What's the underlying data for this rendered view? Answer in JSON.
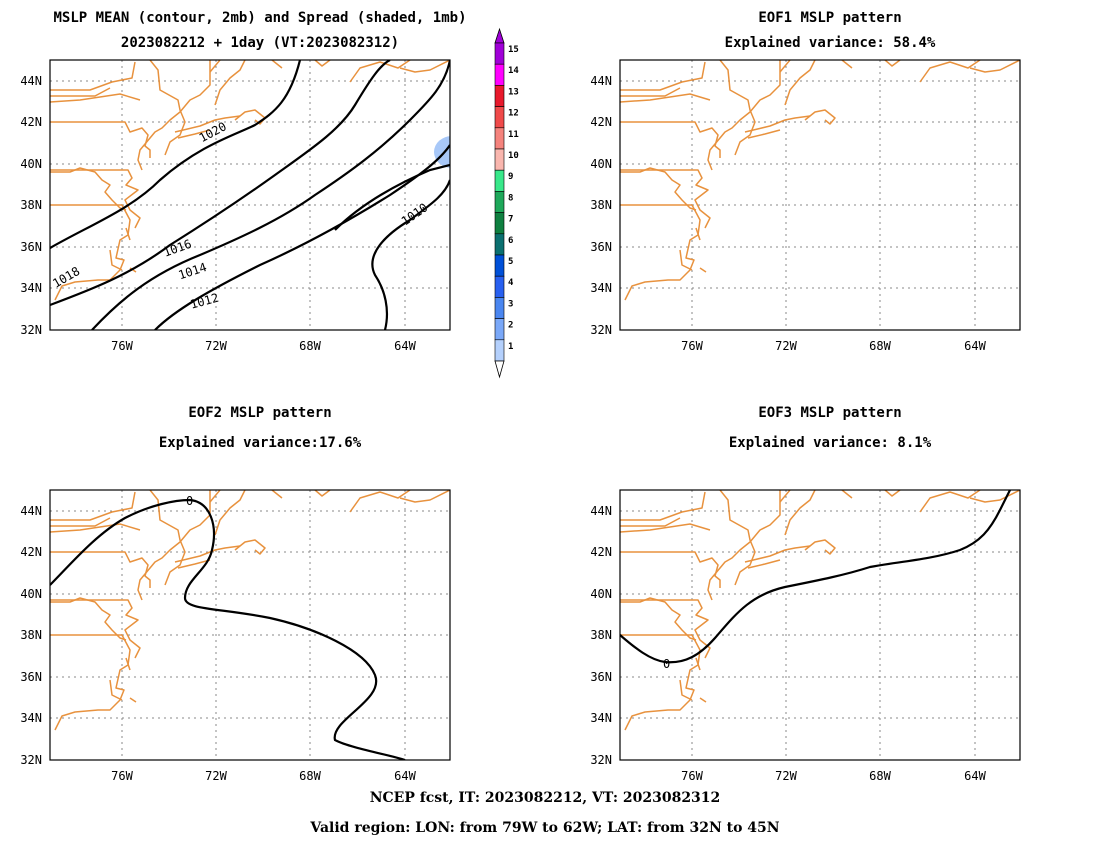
{
  "panels": {
    "mean": {
      "title_line1": "MSLP MEAN (contour, 2mb) and Spread (shaded, 1mb)",
      "title_line2": "2023082212 + 1day (VT:2023082312)",
      "contour_labels": [
        "1020",
        "1018",
        "1016",
        "1014",
        "1012",
        "1010"
      ]
    },
    "eof1": {
      "title_line1": "EOF1 MSLP pattern",
      "title_line2": "Explained variance: 58.4%"
    },
    "eof2": {
      "title_line1": "EOF2 MSLP pattern",
      "title_line2": "Explained variance:17.6%",
      "contour_label": "0"
    },
    "eof3": {
      "title_line1": "EOF3 MSLP pattern",
      "title_line2": "Explained variance: 8.1%",
      "contour_label": "0"
    }
  },
  "axes": {
    "lon_ticks": [
      "76W",
      "72W",
      "68W",
      "64W"
    ],
    "lat_ticks": [
      "44N",
      "42N",
      "40N",
      "38N",
      "36N",
      "34N",
      "32N"
    ]
  },
  "colorbar": {
    "labels": [
      "15",
      "14",
      "13",
      "12",
      "11",
      "10",
      "9",
      "8",
      "7",
      "6",
      "5",
      "4",
      "3",
      "2",
      "1"
    ],
    "colors": [
      "#a000d8",
      "#ff00ff",
      "#e8192c",
      "#f04a4a",
      "#f5837d",
      "#f9b6ae",
      "#38e88a",
      "#1ea85a",
      "#0f8040",
      "#0b7070",
      "#0050d8",
      "#2860f0",
      "#4a86f0",
      "#7aa8f8",
      "#b4d0fc"
    ],
    "spread_shade_color": "#a8c8f8"
  },
  "footer": {
    "line1": "NCEP fcst, IT: 2023082212, VT: 2023082312",
    "line2": "Valid region: LON: from 79W to 62W; LAT: from 32N to 45N"
  }
}
